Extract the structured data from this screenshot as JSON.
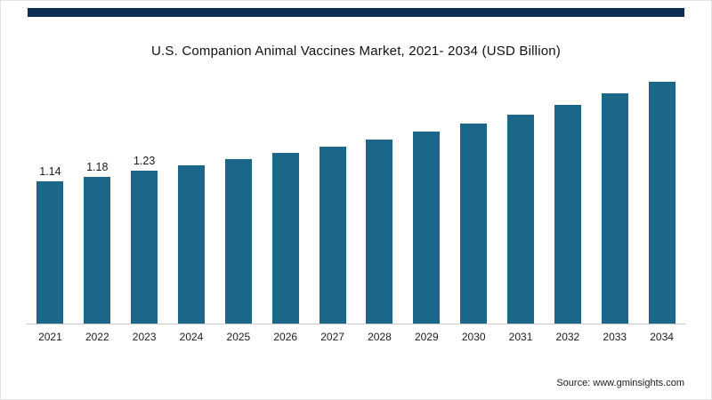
{
  "header": {
    "accent_bar_color": "#0e2d52"
  },
  "chart_data": {
    "type": "bar",
    "title": "U.S. Companion Animal Vaccines Market, 2021- 2034 (USD Billion)",
    "categories": [
      "2021",
      "2022",
      "2023",
      "2024",
      "2025",
      "2026",
      "2027",
      "2028",
      "2029",
      "2030",
      "2031",
      "2032",
      "2033",
      "2034"
    ],
    "values": [
      1.14,
      1.18,
      1.23,
      1.27,
      1.32,
      1.37,
      1.42,
      1.48,
      1.54,
      1.61,
      1.68,
      1.76,
      1.85,
      1.94
    ],
    "value_labels": [
      "1.14",
      "1.18",
      "1.23",
      "",
      "",
      "",
      "",
      "",
      "",
      "",
      "",
      "",
      "",
      ""
    ],
    "bar_color": "#1a678a",
    "xlabel": "",
    "ylabel": "",
    "ylim": [
      0,
      2.0
    ],
    "grid": false,
    "legend": false,
    "axis_line_color": "#c9c9c9"
  },
  "footer": {
    "source": "Source: www.gminsights.com"
  }
}
